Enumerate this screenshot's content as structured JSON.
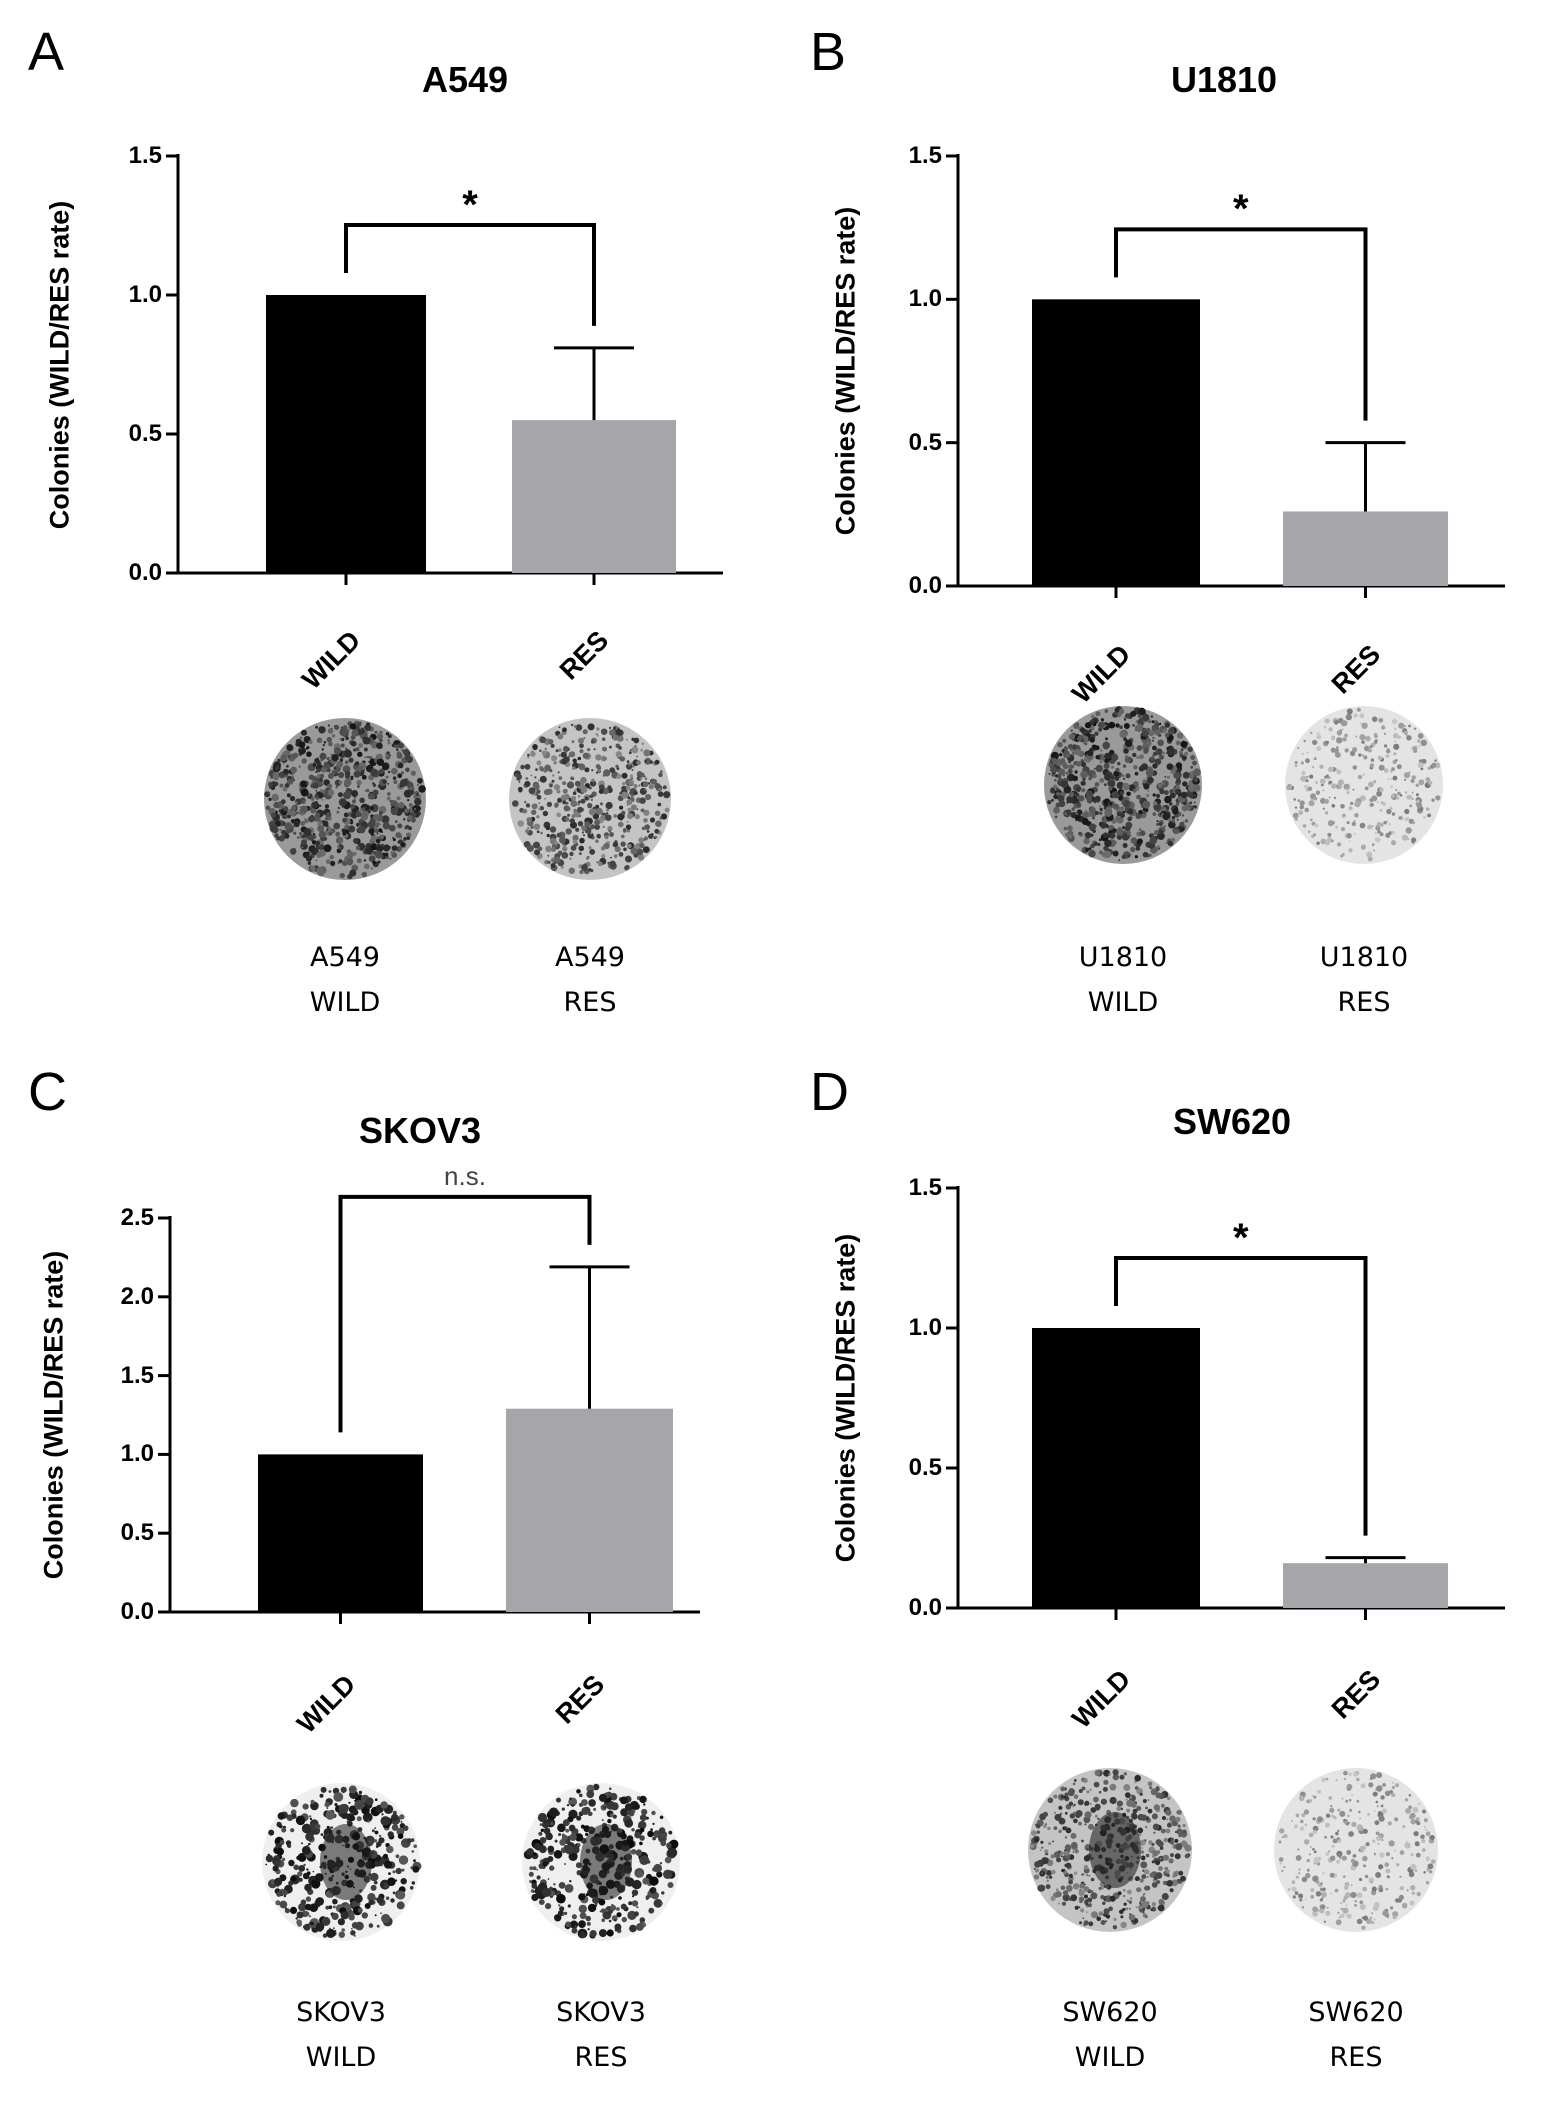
{
  "figure": {
    "panels": [
      "A",
      "B",
      "C",
      "D"
    ],
    "colors": {
      "wild": "#000000",
      "res": "#a5a5aa",
      "axis": "#000000"
    }
  },
  "chart_data": [
    {
      "panel": "A",
      "type": "bar",
      "title": "A549",
      "ylabel": "Colonies (WILD/RES rate)",
      "xlabel": "",
      "categories": [
        "WILD",
        "RES"
      ],
      "values": [
        1.0,
        0.55
      ],
      "errors": [
        0,
        0.26
      ],
      "ylim": [
        0,
        1.5
      ],
      "yticks": [
        "0.0",
        "0.5",
        "1.0",
        "1.5"
      ],
      "significance": "*",
      "images": [
        {
          "line1": "A549",
          "line2": "WILD",
          "density": "dense"
        },
        {
          "line1": "A549",
          "line2": "RES",
          "density": "medium"
        }
      ]
    },
    {
      "panel": "B",
      "type": "bar",
      "title": "U1810",
      "ylabel": "Colonies (WILD/RES rate)",
      "xlabel": "",
      "categories": [
        "WILD",
        "RES"
      ],
      "values": [
        1.0,
        0.26
      ],
      "errors": [
        0,
        0.24
      ],
      "ylim": [
        0,
        1.5
      ],
      "yticks": [
        "0.0",
        "0.5",
        "1.0",
        "1.5"
      ],
      "significance": "*",
      "images": [
        {
          "line1": "U1810",
          "line2": "WILD",
          "density": "dense"
        },
        {
          "line1": "U1810",
          "line2": "RES",
          "density": "light"
        }
      ]
    },
    {
      "panel": "C",
      "type": "bar",
      "title": "SKOV3",
      "ylabel": "Colonies (WILD/RES rate)",
      "xlabel": "",
      "categories": [
        "WILD",
        "RES"
      ],
      "values": [
        1.0,
        1.29
      ],
      "errors": [
        0,
        0.9
      ],
      "ylim": [
        0,
        2.5
      ],
      "yticks": [
        "0.0",
        "0.5",
        "1.0",
        "1.5",
        "2.0",
        "2.5"
      ],
      "significance": "n.s.",
      "images": [
        {
          "line1": "SKOV3",
          "line2": "WILD",
          "density": "sparse"
        },
        {
          "line1": "SKOV3",
          "line2": "RES",
          "density": "sparse"
        }
      ]
    },
    {
      "panel": "D",
      "type": "bar",
      "title": "SW620",
      "ylabel": "Colonies (WILD/RES rate)",
      "xlabel": "",
      "categories": [
        "WILD",
        "RES"
      ],
      "values": [
        1.0,
        0.16
      ],
      "errors": [
        0,
        0.02
      ],
      "ylim": [
        0,
        1.5
      ],
      "yticks": [
        "0.0",
        "0.5",
        "1.0",
        "1.5"
      ],
      "significance": "*",
      "images": [
        {
          "line1": "SW620",
          "line2": "WILD",
          "density": "medium"
        },
        {
          "line1": "SW620",
          "line2": "RES",
          "density": "light"
        }
      ]
    }
  ]
}
